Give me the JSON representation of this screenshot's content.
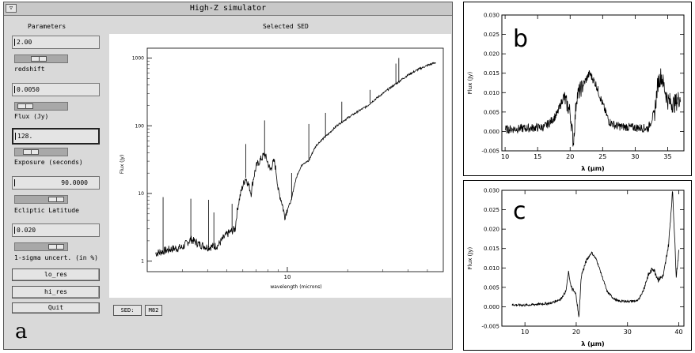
{
  "window": {
    "title": "High-Z simulator",
    "panel_label": "a"
  },
  "params": {
    "heading": "Parameters",
    "redshift": {
      "value": "2.00",
      "label": "redshift",
      "slider_fraction": 0.35
    },
    "flux": {
      "value": "0.0050",
      "label": "Flux (Jy)",
      "slider_fraction": 0.05
    },
    "exposure": {
      "value": "128.",
      "label": "Exposure (seconds)",
      "slider_fraction": 0.15
    },
    "ecliptic": {
      "value": "90.0000",
      "label": "Ecliptic Latitude",
      "slider_fraction": 0.6
    },
    "uncert": {
      "value": "0.020",
      "label": "1-sigma uncert. (in %)",
      "slider_fraction": 0.6
    },
    "buttons": {
      "lo_res": "lo_res",
      "hi_res": "hi_res",
      "quit": "Quit"
    }
  },
  "sed_plot": {
    "title": "Selected SED",
    "ylabel": "Flux (Jy)",
    "xlabel": "wavelength (microns)",
    "y_ticks": [
      "1000",
      "100",
      "10",
      "1"
    ],
    "x_ticks": [
      "10"
    ],
    "sed_button": "SED:",
    "sed_value": "M82"
  },
  "panel_b": {
    "label": "b",
    "ylabel": "Flux (Jy)",
    "xlabel": "λ (μm)",
    "x_ticks": [
      "10",
      "15",
      "20",
      "25",
      "30",
      "35"
    ],
    "y_ticks": [
      "0.030",
      "0.025",
      "0.020",
      "0.015",
      "0.010",
      "0.005",
      "0.000",
      "-0.005"
    ]
  },
  "panel_c": {
    "label": "c",
    "ylabel": "Flux (Jy)",
    "xlabel": "λ (μm)",
    "x_ticks": [
      "10",
      "20",
      "30",
      "40"
    ],
    "y_ticks": [
      "0.030",
      "0.025",
      "0.020",
      "0.015",
      "0.010",
      "0.005",
      "0.000",
      "-0.005"
    ]
  },
  "chart_data": [
    {
      "type": "line",
      "title": "Selected SED",
      "xlabel": "wavelength (microns)",
      "ylabel": "Flux (Jy)",
      "yscale": "log",
      "xscale": "log",
      "xlim": [
        2,
        60
      ],
      "ylim": [
        0.7,
        1400
      ],
      "x": [
        2.2,
        2.6,
        3.0,
        3.3,
        3.6,
        4.0,
        4.5,
        5.0,
        5.5,
        6.2,
        6.6,
        7.0,
        7.7,
        8.2,
        8.6,
        9.0,
        9.7,
        10.5,
        11.3,
        12.0,
        12.8,
        14.0,
        16.0,
        18.0,
        20.0,
        25.0,
        30.0,
        35.0,
        40.0,
        45.0,
        50.0,
        55.0
      ],
      "values": [
        1.3,
        1.5,
        1.6,
        2.1,
        1.8,
        1.6,
        1.7,
        2.5,
        3.0,
        17,
        10,
        25,
        38,
        22,
        30,
        11,
        4.5,
        8,
        20,
        28,
        30,
        52,
        75,
        105,
        130,
        195,
        300,
        420,
        560,
        680,
        780,
        860
      ]
    },
    {
      "type": "line",
      "xlabel": "λ (μm)",
      "ylabel": "Flux (Jy)",
      "xlim": [
        9.5,
        37.5
      ],
      "ylim": [
        -0.005,
        0.03
      ],
      "x": [
        10,
        12,
        14,
        16,
        17,
        18,
        19,
        20,
        20.5,
        21,
        22,
        23,
        24,
        25,
        26,
        27,
        28,
        30,
        32,
        33,
        33.5,
        34,
        35,
        36,
        37
      ],
      "values": [
        0.0005,
        0.0007,
        0.0009,
        0.0011,
        0.0025,
        0.0045,
        0.009,
        0.005,
        -0.003,
        0.009,
        0.012,
        0.015,
        0.012,
        0.007,
        0.0025,
        0.0015,
        0.0012,
        0.001,
        0.0008,
        0.005,
        0.0125,
        0.0145,
        0.008,
        0.007,
        0.009
      ]
    },
    {
      "type": "line",
      "xlabel": "λ (μm)",
      "ylabel": "Flux (Jy)",
      "xlim": [
        5.5,
        41
      ],
      "ylim": [
        -0.005,
        0.03
      ],
      "x": [
        7.5,
        10,
        12,
        15,
        17,
        18,
        18.5,
        19,
        20,
        20.5,
        21,
        22,
        23,
        24,
        25,
        26,
        27,
        28,
        30,
        32,
        33,
        34,
        35,
        36,
        37,
        38,
        38.8,
        39.5,
        40
      ],
      "values": [
        0.0005,
        0.0004,
        0.0006,
        0.0009,
        0.002,
        0.004,
        0.009,
        0.005,
        0.003,
        -0.003,
        0.008,
        0.012,
        0.014,
        0.012,
        0.008,
        0.004,
        0.0025,
        0.0015,
        0.0014,
        0.0015,
        0.004,
        0.008,
        0.01,
        0.007,
        0.008,
        0.016,
        0.03,
        0.008,
        0.014
      ]
    }
  ]
}
